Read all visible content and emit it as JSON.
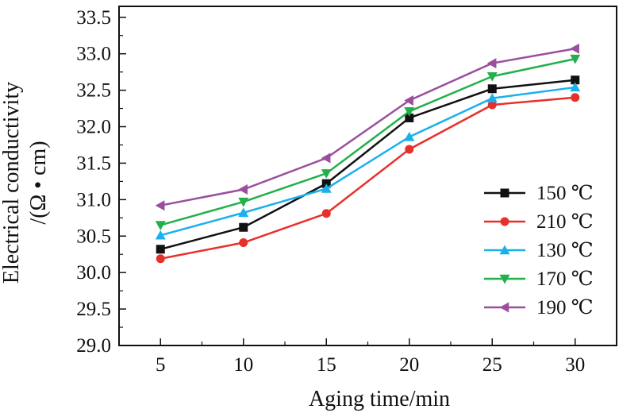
{
  "chart_data": {
    "type": "line",
    "x": [
      5,
      10,
      15,
      20,
      25,
      30
    ],
    "xlabel": "Aging time/min",
    "ylabel_line1": "Electrical conductivity",
    "ylabel_line2": "/(Ω • cm)",
    "xlim": [
      2.5,
      32.5
    ],
    "ylim": [
      29.0,
      33.65
    ],
    "xticks": [
      "5",
      "10",
      "15",
      "20",
      "25",
      "30"
    ],
    "yticks": [
      "29.0",
      "29.5",
      "30.0",
      "30.5",
      "31.0",
      "31.5",
      "32.0",
      "32.5",
      "33.0",
      "33.5"
    ],
    "grid": false,
    "legend_position": "lower-right",
    "series": [
      {
        "name": "150 ℃",
        "color": "#111111",
        "marker": "square",
        "values": [
          30.32,
          30.62,
          31.22,
          32.12,
          32.52,
          32.64
        ]
      },
      {
        "name": "210 ℃",
        "color": "#e8302a",
        "marker": "circle",
        "values": [
          30.19,
          30.41,
          30.81,
          31.69,
          32.3,
          32.4
        ]
      },
      {
        "name": "130 ℃",
        "color": "#1ab0ee",
        "marker": "triangle-up",
        "values": [
          30.51,
          30.82,
          31.15,
          31.86,
          32.39,
          32.54
        ]
      },
      {
        "name": "170 ℃",
        "color": "#22b04b",
        "marker": "triangle-down",
        "values": [
          30.65,
          30.97,
          31.36,
          32.21,
          32.69,
          32.93
        ]
      },
      {
        "name": "190 ℃",
        "color": "#9a4f9e",
        "marker": "triangle-left",
        "values": [
          30.92,
          31.14,
          31.57,
          32.36,
          32.87,
          33.07
        ]
      }
    ]
  }
}
